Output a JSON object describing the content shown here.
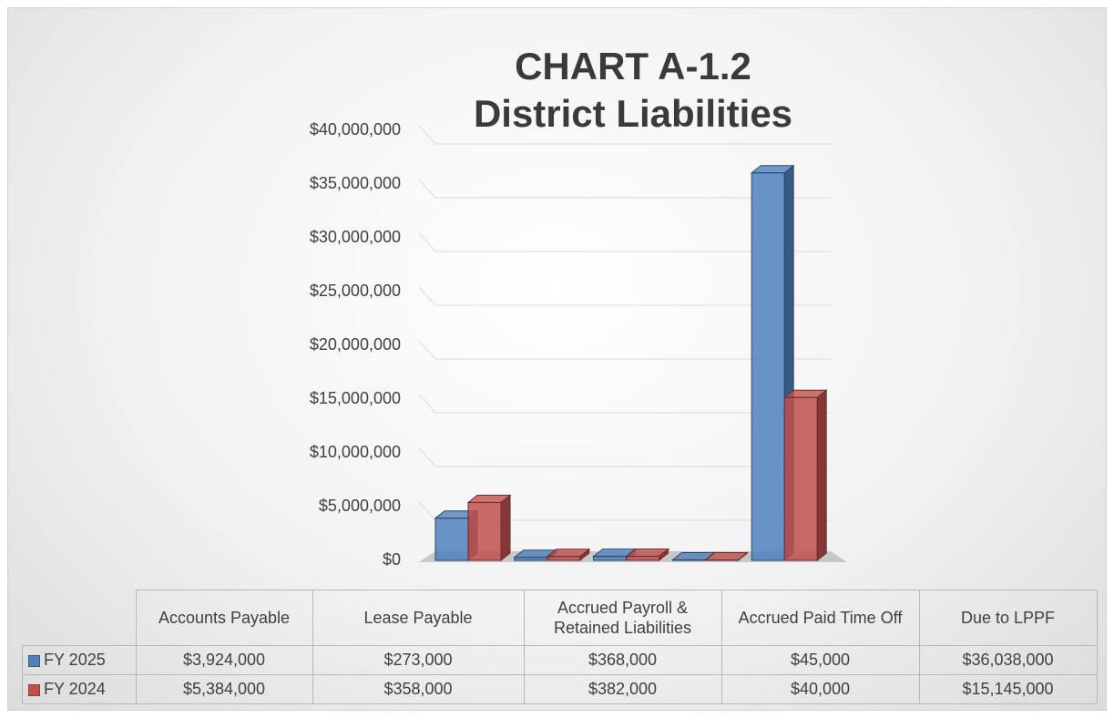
{
  "chart_data": {
    "type": "bar3d",
    "title": [
      "CHART A-1.2",
      "District Liabilities"
    ],
    "categories": [
      "Accounts Payable",
      "Lease Payable",
      "Accrued Payroll & Retained Liabilities",
      "Accrued Paid Time Off",
      "Due to LPPF"
    ],
    "series": [
      {
        "name": "FY 2025",
        "color": "#4f81bd",
        "values": [
          3924000,
          273000,
          368000,
          45000,
          36038000
        ],
        "value_labels": [
          "$3,924,000",
          "$273,000",
          "$368,000",
          "$45,000",
          "$36,038,000"
        ]
      },
      {
        "name": "FY 2024",
        "color": "#c0504d",
        "values": [
          5384000,
          358000,
          382000,
          40000,
          15145000
        ],
        "value_labels": [
          "$5,384,000",
          "$358,000",
          "$382,000",
          "$40,000",
          "$15,145,000"
        ]
      }
    ],
    "ylim": [
      0,
      40000000
    ],
    "yticks": [
      {
        "value": 0,
        "label": "$0"
      },
      {
        "value": 5000000,
        "label": "$5,000,000"
      },
      {
        "value": 10000000,
        "label": "$10,000,000"
      },
      {
        "value": 15000000,
        "label": "$15,000,000"
      },
      {
        "value": 20000000,
        "label": "$20,000,000"
      },
      {
        "value": 25000000,
        "label": "$25,000,000"
      },
      {
        "value": 30000000,
        "label": "$30,000,000"
      },
      {
        "value": 35000000,
        "label": "$35,000,000"
      },
      {
        "value": 40000000,
        "label": "$40,000,000"
      }
    ],
    "grid": true
  }
}
